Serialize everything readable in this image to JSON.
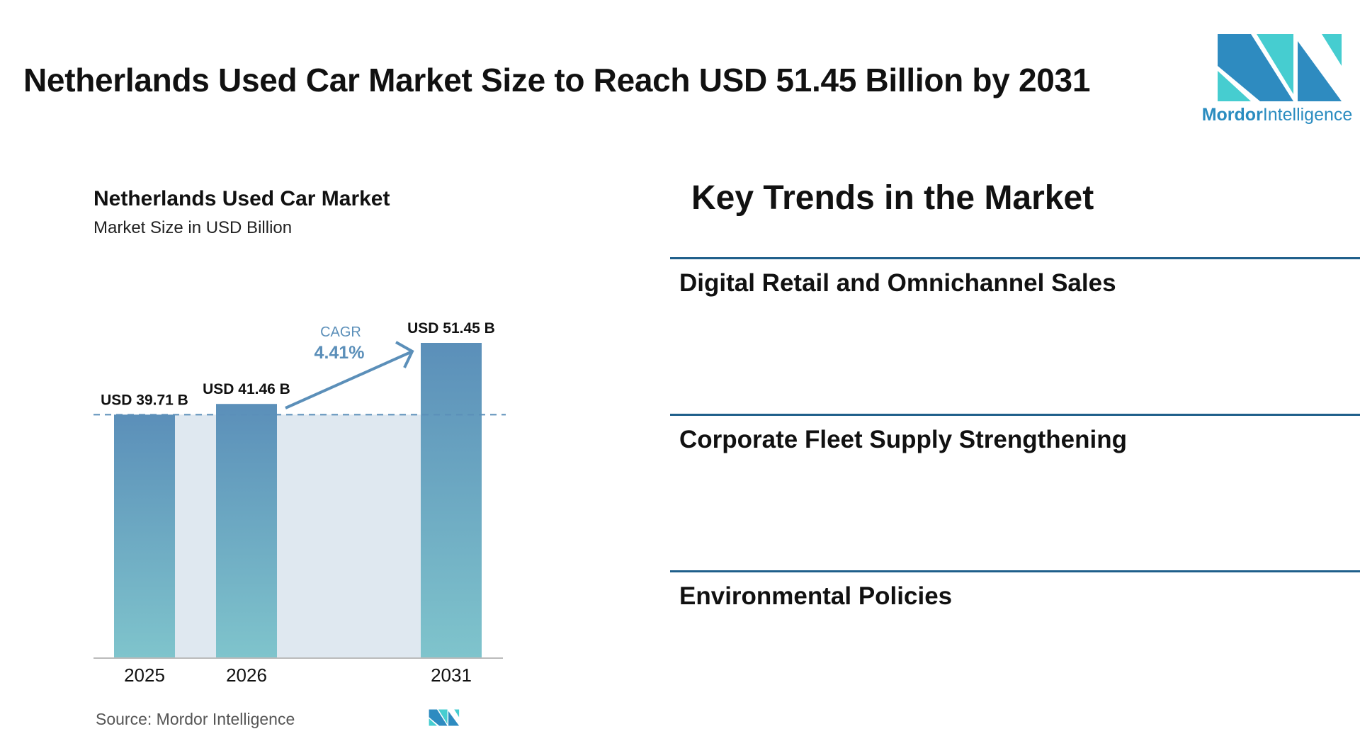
{
  "header": {
    "title": "Netherlands Used Car Market Size to Reach USD 51.45 Billion by 2031",
    "logo_text_bold": "Mordor",
    "logo_text_light": "Intelligence"
  },
  "chart_data": {
    "type": "bar",
    "title": "Netherlands Used Car Market",
    "subtitle": "Market Size in USD Billion",
    "categories": [
      "2025",
      "2026",
      "2031"
    ],
    "values": [
      39.71,
      41.46,
      51.45
    ],
    "data_labels": [
      "USD 39.71 B",
      "USD 41.46 B",
      "USD 51.45 B"
    ],
    "ylim": [
      0,
      51.45
    ],
    "grid": false,
    "annotation": {
      "label": "CAGR",
      "value": "4.41%"
    },
    "colors": {
      "bar_top": "#5b8fb9",
      "bar_bottom": "#7fc4cc",
      "shade": "#dfe8f0",
      "accent": "#5b8fb9"
    },
    "source": "Source:  Mordor Intelligence"
  },
  "trends": {
    "title": "Key Trends in the Market",
    "items": [
      {
        "label": "Digital Retail and Omnichannel Sales"
      },
      {
        "label": "Corporate Fleet Supply Strengthening"
      },
      {
        "label": "Environmental Policies"
      }
    ],
    "line_color": "#1f5f8b"
  }
}
